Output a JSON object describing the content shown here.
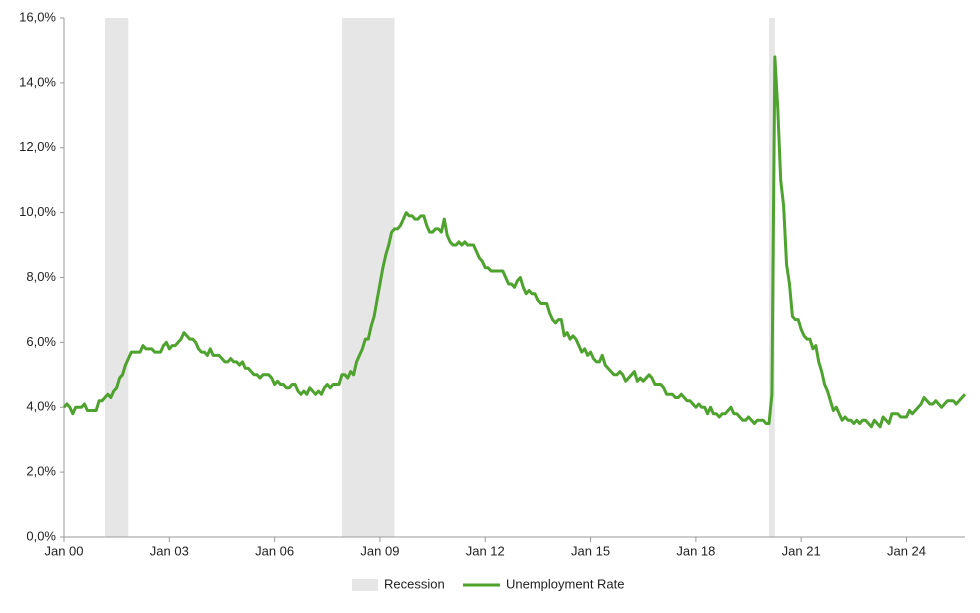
{
  "chart_data": {
    "type": "line",
    "x": [
      "2000-01",
      "2000-02",
      "2000-03",
      "2000-04",
      "2000-05",
      "2000-06",
      "2000-07",
      "2000-08",
      "2000-09",
      "2000-10",
      "2000-11",
      "2000-12",
      "2001-01",
      "2001-02",
      "2001-03",
      "2001-04",
      "2001-05",
      "2001-06",
      "2001-07",
      "2001-08",
      "2001-09",
      "2001-10",
      "2001-11",
      "2001-12",
      "2002-01",
      "2002-02",
      "2002-03",
      "2002-04",
      "2002-05",
      "2002-06",
      "2002-07",
      "2002-08",
      "2002-09",
      "2002-10",
      "2002-11",
      "2002-12",
      "2003-01",
      "2003-02",
      "2003-03",
      "2003-04",
      "2003-05",
      "2003-06",
      "2003-07",
      "2003-08",
      "2003-09",
      "2003-10",
      "2003-11",
      "2003-12",
      "2004-01",
      "2004-02",
      "2004-03",
      "2004-04",
      "2004-05",
      "2004-06",
      "2004-07",
      "2004-08",
      "2004-09",
      "2004-10",
      "2004-11",
      "2004-12",
      "2005-01",
      "2005-02",
      "2005-03",
      "2005-04",
      "2005-05",
      "2005-06",
      "2005-07",
      "2005-08",
      "2005-09",
      "2005-10",
      "2005-11",
      "2005-12",
      "2006-01",
      "2006-02",
      "2006-03",
      "2006-04",
      "2006-05",
      "2006-06",
      "2006-07",
      "2006-08",
      "2006-09",
      "2006-10",
      "2006-11",
      "2006-12",
      "2007-01",
      "2007-02",
      "2007-03",
      "2007-04",
      "2007-05",
      "2007-06",
      "2007-07",
      "2007-08",
      "2007-09",
      "2007-10",
      "2007-11",
      "2007-12",
      "2008-01",
      "2008-02",
      "2008-03",
      "2008-04",
      "2008-05",
      "2008-06",
      "2008-07",
      "2008-08",
      "2008-09",
      "2008-10",
      "2008-11",
      "2008-12",
      "2009-01",
      "2009-02",
      "2009-03",
      "2009-04",
      "2009-05",
      "2009-06",
      "2009-07",
      "2009-08",
      "2009-09",
      "2009-10",
      "2009-11",
      "2009-12",
      "2010-01",
      "2010-02",
      "2010-03",
      "2010-04",
      "2010-05",
      "2010-06",
      "2010-07",
      "2010-08",
      "2010-09",
      "2010-10",
      "2010-11",
      "2010-12",
      "2011-01",
      "2011-02",
      "2011-03",
      "2011-04",
      "2011-05",
      "2011-06",
      "2011-07",
      "2011-08",
      "2011-09",
      "2011-10",
      "2011-11",
      "2011-12",
      "2012-01",
      "2012-02",
      "2012-03",
      "2012-04",
      "2012-05",
      "2012-06",
      "2012-07",
      "2012-08",
      "2012-09",
      "2012-10",
      "2012-11",
      "2012-12",
      "2013-01",
      "2013-02",
      "2013-03",
      "2013-04",
      "2013-05",
      "2013-06",
      "2013-07",
      "2013-08",
      "2013-09",
      "2013-10",
      "2013-11",
      "2013-12",
      "2014-01",
      "2014-02",
      "2014-03",
      "2014-04",
      "2014-05",
      "2014-06",
      "2014-07",
      "2014-08",
      "2014-09",
      "2014-10",
      "2014-11",
      "2014-12",
      "2015-01",
      "2015-02",
      "2015-03",
      "2015-04",
      "2015-05",
      "2015-06",
      "2015-07",
      "2015-08",
      "2015-09",
      "2015-10",
      "2015-11",
      "2015-12",
      "2016-01",
      "2016-02",
      "2016-03",
      "2016-04",
      "2016-05",
      "2016-06",
      "2016-07",
      "2016-08",
      "2016-09",
      "2016-10",
      "2016-11",
      "2016-12",
      "2017-01",
      "2017-02",
      "2017-03",
      "2017-04",
      "2017-05",
      "2017-06",
      "2017-07",
      "2017-08",
      "2017-09",
      "2017-10",
      "2017-11",
      "2017-12",
      "2018-01",
      "2018-02",
      "2018-03",
      "2018-04",
      "2018-05",
      "2018-06",
      "2018-07",
      "2018-08",
      "2018-09",
      "2018-10",
      "2018-11",
      "2018-12",
      "2019-01",
      "2019-02",
      "2019-03",
      "2019-04",
      "2019-05",
      "2019-06",
      "2019-07",
      "2019-08",
      "2019-09",
      "2019-10",
      "2019-11",
      "2019-12",
      "2020-01",
      "2020-02",
      "2020-03",
      "2020-04",
      "2020-05",
      "2020-06",
      "2020-07",
      "2020-08",
      "2020-09",
      "2020-10",
      "2020-11",
      "2020-12",
      "2021-01",
      "2021-02",
      "2021-03",
      "2021-04",
      "2021-05",
      "2021-06",
      "2021-07",
      "2021-08",
      "2021-09",
      "2021-10",
      "2021-11",
      "2021-12",
      "2022-01",
      "2022-02",
      "2022-03",
      "2022-04",
      "2022-05",
      "2022-06",
      "2022-07",
      "2022-08",
      "2022-09",
      "2022-10",
      "2022-11",
      "2022-12",
      "2023-01",
      "2023-02",
      "2023-03",
      "2023-04",
      "2023-05",
      "2023-06",
      "2023-07",
      "2023-08",
      "2023-09",
      "2023-10",
      "2023-11",
      "2023-12",
      "2024-01",
      "2024-02",
      "2024-03",
      "2024-04",
      "2024-05",
      "2024-06",
      "2024-07",
      "2024-08",
      "2024-09",
      "2024-10",
      "2024-11",
      "2024-12",
      "2025-01",
      "2025-02",
      "2025-03",
      "2025-04",
      "2025-05",
      "2025-06",
      "2025-07",
      "2025-08",
      "2025-09"
    ],
    "series": [
      {
        "name": "Unemployment Rate",
        "color": "#4ea22e",
        "values": [
          4.0,
          4.1,
          4.0,
          3.8,
          4.0,
          4.0,
          4.0,
          4.1,
          3.9,
          3.9,
          3.9,
          3.9,
          4.2,
          4.2,
          4.3,
          4.4,
          4.3,
          4.5,
          4.6,
          4.9,
          5.0,
          5.3,
          5.5,
          5.7,
          5.7,
          5.7,
          5.7,
          5.9,
          5.8,
          5.8,
          5.8,
          5.7,
          5.7,
          5.7,
          5.9,
          6.0,
          5.8,
          5.9,
          5.9,
          6.0,
          6.1,
          6.3,
          6.2,
          6.1,
          6.1,
          6.0,
          5.8,
          5.7,
          5.7,
          5.6,
          5.8,
          5.6,
          5.6,
          5.6,
          5.5,
          5.4,
          5.4,
          5.5,
          5.4,
          5.4,
          5.3,
          5.4,
          5.2,
          5.2,
          5.1,
          5.0,
          5.0,
          4.9,
          5.0,
          5.0,
          5.0,
          4.9,
          4.7,
          4.8,
          4.7,
          4.7,
          4.6,
          4.6,
          4.7,
          4.7,
          4.5,
          4.4,
          4.5,
          4.4,
          4.6,
          4.5,
          4.4,
          4.5,
          4.4,
          4.6,
          4.7,
          4.6,
          4.7,
          4.7,
          4.7,
          5.0,
          5.0,
          4.9,
          5.1,
          5.0,
          5.4,
          5.6,
          5.8,
          6.1,
          6.1,
          6.5,
          6.8,
          7.3,
          7.8,
          8.3,
          8.7,
          9.0,
          9.4,
          9.5,
          9.5,
          9.6,
          9.8,
          10.0,
          9.9,
          9.9,
          9.8,
          9.8,
          9.9,
          9.9,
          9.6,
          9.4,
          9.4,
          9.5,
          9.5,
          9.4,
          9.8,
          9.3,
          9.1,
          9.0,
          9.0,
          9.1,
          9.0,
          9.1,
          9.0,
          9.0,
          9.0,
          8.8,
          8.6,
          8.5,
          8.3,
          8.3,
          8.2,
          8.2,
          8.2,
          8.2,
          8.2,
          8.0,
          7.8,
          7.8,
          7.7,
          7.9,
          8.0,
          7.7,
          7.5,
          7.6,
          7.5,
          7.5,
          7.3,
          7.2,
          7.2,
          7.2,
          6.9,
          6.7,
          6.6,
          6.7,
          6.7,
          6.2,
          6.3,
          6.1,
          6.2,
          6.1,
          5.9,
          5.7,
          5.8,
          5.6,
          5.7,
          5.5,
          5.4,
          5.4,
          5.6,
          5.3,
          5.2,
          5.1,
          5.0,
          5.0,
          5.1,
          5.0,
          4.8,
          4.9,
          5.0,
          5.1,
          4.8,
          4.9,
          4.8,
          4.9,
          5.0,
          4.9,
          4.7,
          4.7,
          4.7,
          4.6,
          4.4,
          4.4,
          4.4,
          4.3,
          4.3,
          4.4,
          4.3,
          4.2,
          4.2,
          4.1,
          4.0,
          4.1,
          4.0,
          4.0,
          3.8,
          4.0,
          3.8,
          3.8,
          3.7,
          3.8,
          3.8,
          3.9,
          4.0,
          3.8,
          3.8,
          3.7,
          3.6,
          3.6,
          3.7,
          3.6,
          3.5,
          3.6,
          3.6,
          3.6,
          3.5,
          3.5,
          4.4,
          14.8,
          13.2,
          11.0,
          10.2,
          8.4,
          7.8,
          6.8,
          6.7,
          6.7,
          6.4,
          6.2,
          6.1,
          6.1,
          5.8,
          5.9,
          5.4,
          5.1,
          4.7,
          4.5,
          4.2,
          3.9,
          4.0,
          3.8,
          3.6,
          3.7,
          3.6,
          3.6,
          3.5,
          3.6,
          3.5,
          3.6,
          3.6,
          3.5,
          3.4,
          3.6,
          3.5,
          3.4,
          3.7,
          3.6,
          3.5,
          3.8,
          3.8,
          3.8,
          3.7,
          3.7,
          3.7,
          3.9,
          3.8,
          3.9,
          4.0,
          4.1,
          4.3,
          4.2,
          4.1,
          4.1,
          4.2,
          4.1,
          4.0,
          4.1,
          4.2,
          4.2,
          4.2,
          4.1,
          4.2,
          4.3,
          4.4
        ]
      }
    ],
    "recession": {
      "name": "Recession",
      "color": "#e6e6e6",
      "periods": [
        [
          "2001-03",
          "2001-11"
        ],
        [
          "2007-12",
          "2009-06"
        ],
        [
          "2020-02",
          "2020-04"
        ]
      ]
    },
    "xlim": [
      "2000-01",
      "2025-09"
    ],
    "xticks": [
      {
        "value": "2000-01",
        "label": "Jan 00"
      },
      {
        "value": "2003-01",
        "label": "Jan 03"
      },
      {
        "value": "2006-01",
        "label": "Jan 06"
      },
      {
        "value": "2009-01",
        "label": "Jan 09"
      },
      {
        "value": "2012-01",
        "label": "Jan 12"
      },
      {
        "value": "2015-01",
        "label": "Jan 15"
      },
      {
        "value": "2018-01",
        "label": "Jan 18"
      },
      {
        "value": "2021-01",
        "label": "Jan 21"
      },
      {
        "value": "2024-01",
        "label": "Jan 24"
      }
    ],
    "ylim": [
      0,
      16
    ],
    "yticks": [
      {
        "value": 0,
        "label": "0,0%"
      },
      {
        "value": 2,
        "label": "2,0%"
      },
      {
        "value": 4,
        "label": "4,0%"
      },
      {
        "value": 6,
        "label": "6,0%"
      },
      {
        "value": 8,
        "label": "8,0%"
      },
      {
        "value": 10,
        "label": "10,0%"
      },
      {
        "value": 12,
        "label": "12,0%"
      },
      {
        "value": 14,
        "label": "14,0%"
      },
      {
        "value": 16,
        "label": "16,0%"
      }
    ]
  }
}
